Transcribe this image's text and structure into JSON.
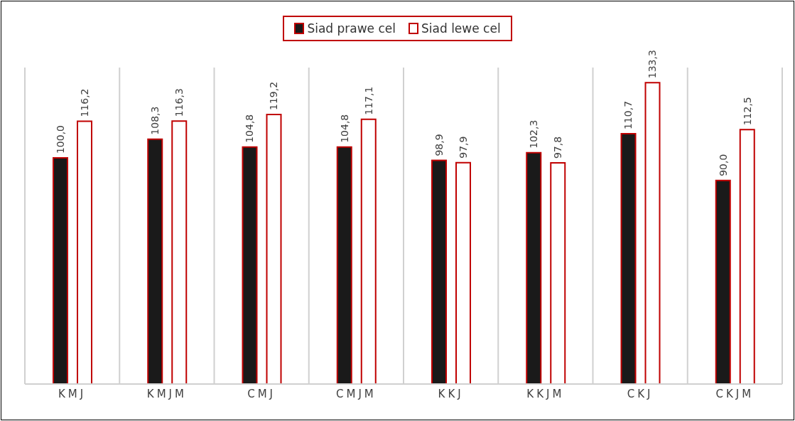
{
  "chart_data": {
    "type": "bar",
    "categories": [
      "KMJ",
      "KMJM",
      "CMJ",
      "CMJM",
      "KKJ",
      "KKJM",
      "CKJ",
      "CKJM"
    ],
    "series": [
      {
        "name": "Siad prawe cel",
        "color": "#1a1a1a",
        "values": [
          100.0,
          108.3,
          104.8,
          104.8,
          98.9,
          102.3,
          110.7,
          90.0
        ],
        "value_labels": [
          "100,0",
          "108,3",
          "104,8",
          "104,8",
          "98,9",
          "102,3",
          "110,7",
          "90,0"
        ]
      },
      {
        "name": "Siad lewe cel",
        "color": "#ffffff",
        "values": [
          116.2,
          116.3,
          119.2,
          117.1,
          97.9,
          97.8,
          133.3,
          112.5
        ],
        "value_labels": [
          "116,2",
          "116,3",
          "119,2",
          "117,1",
          "97,9",
          "97,8",
          "133,3",
          "112,5"
        ]
      }
    ],
    "grid": "x",
    "legend": "top"
  }
}
